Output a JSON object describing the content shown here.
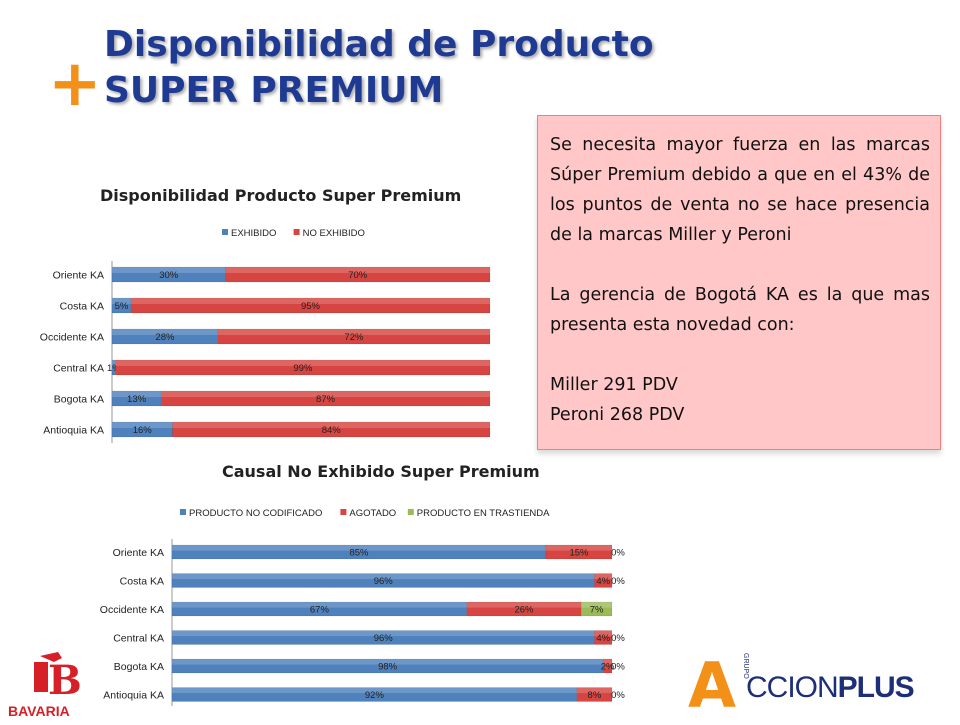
{
  "header": {
    "plus_symbol": "+",
    "title_line1": "Disponibilidad de Producto",
    "title_line2": "SUPER PREMIUM"
  },
  "note": {
    "paragraph1": "Se necesita mayor fuerza en las marcas Súper Premium debido a que en el 43% de los puntos de venta no se hace presencia de la marcas Miller y Peroni",
    "paragraph2": "La gerencia de Bogotá KA es la que mas presenta esta novedad con:",
    "line3": "Miller 291 PDV",
    "line4": "Peroni 268 PDV"
  },
  "logos": {
    "left_text": "BAVARIA",
    "left_mark": "B",
    "right_prefix": "A",
    "right_text_bold": "PLUS",
    "right_text_light": "CCION",
    "right_small": "GRUPO"
  },
  "chart_data": [
    {
      "type": "bar",
      "stacked": true,
      "orientation": "horizontal",
      "title": "Disponibilidad Producto Super Premium",
      "legend_position": "top",
      "categories": [
        "Oriente KA",
        "Costa KA",
        "Occidente KA",
        "Central KA",
        "Bogota KA",
        "Antioquia KA"
      ],
      "series": [
        {
          "name": "EXHIBIDO",
          "color": "#4f81bd",
          "values": [
            30,
            5,
            28,
            1,
            13,
            16
          ]
        },
        {
          "name": "NO EXHIBIDO",
          "color": "#d64541",
          "values": [
            70,
            95,
            72,
            99,
            87,
            84
          ]
        }
      ],
      "unit": "%",
      "xlim": [
        0,
        100
      ]
    },
    {
      "type": "bar",
      "stacked": true,
      "orientation": "horizontal",
      "title": "Causal No Exhibido Super Premium",
      "legend_position": "top",
      "categories": [
        "Oriente KA",
        "Costa KA",
        "Occidente KA",
        "Central KA",
        "Bogota KA",
        "Antioquia KA"
      ],
      "series": [
        {
          "name": "PRODUCTO NO CODIFICADO",
          "color": "#4f81bd",
          "values": [
            85,
            96,
            67,
            96,
            98,
            92
          ]
        },
        {
          "name": "AGOTADO",
          "color": "#d64541",
          "values": [
            15,
            4,
            26,
            4,
            2,
            8
          ]
        },
        {
          "name": "PRODUCTO EN TRASTIENDA",
          "color": "#9bbb59",
          "values": [
            0,
            0,
            7,
            0,
            0,
            0
          ]
        }
      ],
      "unit": "%",
      "xlim": [
        0,
        100
      ]
    }
  ]
}
